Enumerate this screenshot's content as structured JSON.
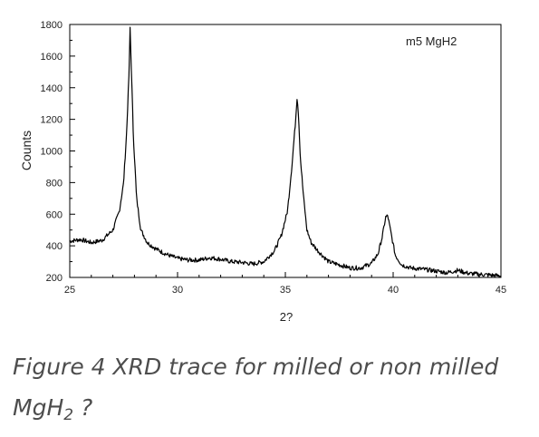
{
  "chart_data": {
    "type": "line",
    "xlabel": "2?",
    "ylabel": "Counts",
    "xlim": [
      25,
      45
    ],
    "ylim": [
      200,
      1800
    ],
    "x_ticks": [
      25,
      30,
      35,
      40,
      45
    ],
    "y_ticks": [
      200,
      400,
      600,
      800,
      1000,
      1200,
      1400,
      1600,
      1800
    ],
    "grid": false,
    "legend_position": "top-right",
    "series": [
      {
        "name": "m5 MgH2",
        "color": "#000000",
        "x": [
          25.0,
          25.5,
          26.0,
          26.5,
          27.0,
          27.3,
          27.5,
          27.65,
          27.75,
          27.8,
          27.85,
          27.95,
          28.1,
          28.3,
          28.6,
          29.0,
          29.5,
          30.0,
          30.5,
          31.0,
          31.5,
          32.0,
          32.5,
          33.0,
          33.5,
          34.0,
          34.5,
          34.8,
          35.1,
          35.3,
          35.45,
          35.55,
          35.62,
          35.7,
          35.85,
          36.0,
          36.2,
          36.5,
          37.0,
          37.5,
          38.0,
          38.5,
          39.0,
          39.3,
          39.5,
          39.65,
          39.75,
          39.9,
          40.1,
          40.4,
          40.8,
          41.5,
          42.0,
          42.5,
          43.0,
          43.5,
          44.0,
          44.5,
          45.0
        ],
        "values": [
          430,
          440,
          420,
          435,
          500,
          620,
          800,
          1150,
          1500,
          1780,
          1550,
          1100,
          700,
          500,
          420,
          380,
          345,
          320,
          310,
          310,
          325,
          315,
          300,
          295,
          285,
          300,
          370,
          460,
          620,
          900,
          1150,
          1350,
          1200,
          950,
          700,
          500,
          420,
          370,
          300,
          280,
          260,
          260,
          290,
          350,
          460,
          580,
          590,
          480,
          340,
          280,
          260,
          250,
          240,
          230,
          245,
          225,
          220,
          215,
          210
        ]
      }
    ]
  },
  "caption": {
    "text_before": "Figure 4 XRD trace for milled or non milled MgH",
    "subscript": "2",
    "text_after": " ?"
  }
}
